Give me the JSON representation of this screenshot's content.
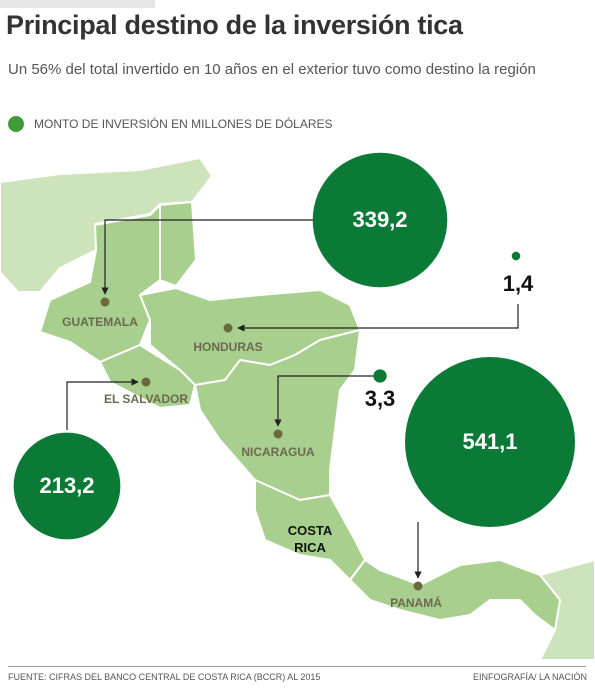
{
  "header": {
    "title": "Principal destino de la inversión tica",
    "subtitle": "Un 56% del total invertido en 10 años en el exterior tuvo como destino la región"
  },
  "legend": {
    "label": "MONTO DE INVERSIÓN EN MILLONES DE DÓLARES"
  },
  "map": {
    "countries": [
      {
        "name": "GUATEMALA",
        "investment": {
          "value": 339.2,
          "label": "339,2"
        }
      },
      {
        "name": "HONDURAS",
        "investment": {
          "value": 1.4,
          "label": "1,4"
        }
      },
      {
        "name": "EL SALVADOR",
        "investment": {
          "value": 213.2,
          "label": "213,2"
        }
      },
      {
        "name": "NICARAGUA",
        "investment": {
          "value": 3.3,
          "label": "3,3"
        }
      },
      {
        "name": "COSTA RICA"
      },
      {
        "name": "PANAMÁ",
        "investment": {
          "value": 541.1,
          "label": "541,1"
        }
      }
    ]
  },
  "footer": {
    "source": "FUENTE: CIFRAS DEL BANCO CENTRAL DE COSTA RICA (BCCR) AL 2015",
    "credit": "EINFOGRAFÍA/ LA NACIÓN"
  }
}
